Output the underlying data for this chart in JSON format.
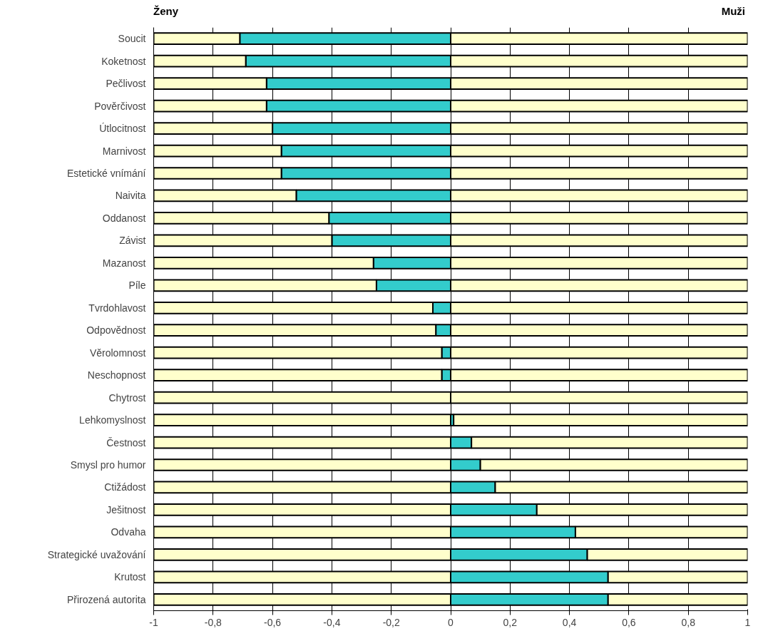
{
  "chart_data": {
    "type": "bar",
    "orientation": "horizontal",
    "stacked": true,
    "categories": [
      "Soucit",
      "Koketnost",
      "Pečlivost",
      "Pověrčivost",
      "Útlocitnost",
      "Marnivost",
      "Estetické vnímání",
      "Naivita",
      "Oddanost",
      "Závist",
      "Mazanost",
      "Píle",
      "Tvrdohlavost",
      "Odpovědnost",
      "Věrolomnost",
      "Neschopnost",
      "Chytrost",
      "Lehkomyslnost",
      "Čestnost",
      "Smysl pro humor",
      "Ctižádost",
      "Ješitnost",
      "Odvaha",
      "Strategické uvažování",
      "Krutost",
      "Přirozená autorita"
    ],
    "series": [
      {
        "color": "#33cccc",
        "values": [
          -0.71,
          -0.69,
          -0.62,
          -0.62,
          -0.6,
          -0.57,
          -0.57,
          -0.52,
          -0.41,
          -0.4,
          -0.26,
          -0.25,
          -0.06,
          -0.05,
          -0.03,
          -0.03,
          null,
          0.01,
          0.07,
          0.1,
          0.15,
          0.29,
          0.42,
          0.46,
          0.53,
          0.53
        ]
      },
      {
        "color": "#ffffcc",
        "values": [
          -0.29,
          -0.31,
          -0.38,
          -0.38,
          -0.4,
          -0.43,
          -0.43,
          -0.48,
          -0.59,
          -0.6,
          -0.74,
          -0.75,
          -0.94,
          -0.95,
          -0.97,
          -0.97,
          -1,
          -1,
          -1,
          -1,
          -1,
          -1,
          -1,
          -1,
          -1,
          -1
        ]
      },
      {
        "color": "#ffffcc",
        "values": [
          1,
          1,
          1,
          1,
          1,
          1,
          1,
          1,
          1,
          1,
          1,
          1,
          1,
          1,
          1,
          1,
          1,
          0.99,
          0.93,
          0.9,
          0.85,
          0.71,
          0.58,
          0.54,
          0.47,
          0.47
        ]
      }
    ],
    "xlim": [
      -1,
      1
    ],
    "xticks": [
      {
        "value": -1,
        "label": "-1"
      },
      {
        "value": -0.8,
        "label": "-0,8"
      },
      {
        "value": -0.6,
        "label": "-0,6"
      },
      {
        "value": -0.4,
        "label": "-0,4"
      },
      {
        "value": -0.2,
        "label": "-0,2"
      },
      0,
      {
        "value": 0.2,
        "label": "0,2"
      },
      {
        "value": 0.4,
        "label": "0,4"
      },
      {
        "value": 0.6,
        "label": "0,6"
      },
      {
        "value": 0.8,
        "label": "0,8"
      },
      1
    ],
    "grid": "x",
    "annotations": [
      "Ženy",
      "Muži"
    ]
  }
}
